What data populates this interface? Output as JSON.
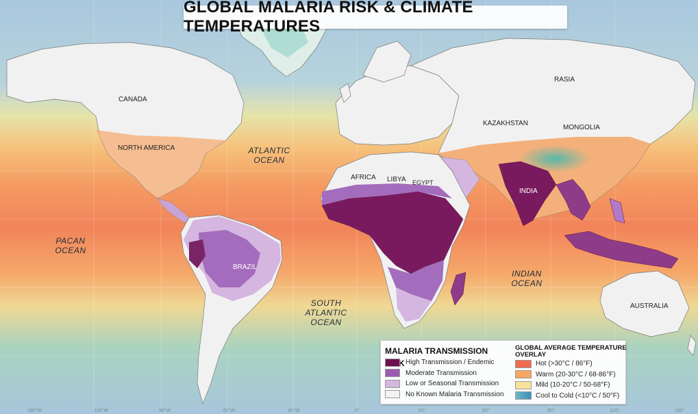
{
  "title": "GLOBAL MALARIA RISK & CLIMATE TEMPERATURES",
  "map_labels": {
    "canada": "CANADA",
    "north_america": "NORTH AMERICA",
    "rasia": "RASIA",
    "kazakhstan": "KAZAKHSTAN",
    "mongolia": "MONGOLIA",
    "africa": "AFRICA",
    "libya": "LIBYA",
    "egypt": "EGYPT",
    "india": "INDIA",
    "brazil": "BRAZIL",
    "australia": "AUSTRALIA"
  },
  "oceans": {
    "atlantic": "ATLANTIC\nOCEAN",
    "pacific": "PACAN\nOCEAN",
    "south_atlantic": "SOUTH\nATLANTIC\nOCEAN",
    "indian": "INDIAN\nOCEAN"
  },
  "longitude_ticks": [
    "180°W",
    "120°W",
    "90°W",
    "60°W",
    "30°W",
    "0°",
    "30°",
    "60°",
    "90°",
    "120°",
    "180°"
  ],
  "legend": {
    "malaria": {
      "title": "MALARIA TRANSMISSION RISK",
      "items": [
        {
          "label": "High Transmission / Endemic",
          "color": "#6e1050"
        },
        {
          "label": "Moderate Transmission",
          "color": "#9b5bb0"
        },
        {
          "label": "Low or Seasonal Transmission",
          "color": "#d4b6e0"
        },
        {
          "label": "No Known Malaria Transmission",
          "color": "#f2f2f2"
        }
      ]
    },
    "temperature": {
      "title": "GLOBAL AVERAGE TEMPERATURE\nOVERLAY",
      "items": [
        {
          "label": "Hot (>30°C / 86°F)",
          "color": "#f26a4f"
        },
        {
          "label": "Warm (20-30°C / 68-86°F)",
          "color": "#f7a566"
        },
        {
          "label": "Mild (10-20°C / 50-68°F)",
          "color": "#f7e49a"
        },
        {
          "label": "Cool to Cold (<10°C / 50°F)",
          "color": "#6cb8c6"
        }
      ]
    }
  }
}
